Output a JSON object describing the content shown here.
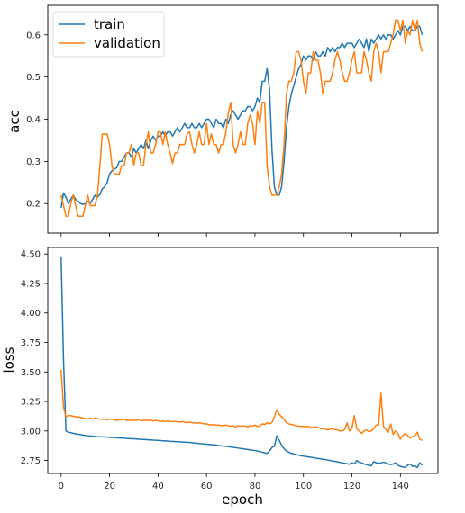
{
  "colors": {
    "train": "#1f77b4",
    "validation": "#ff7f0e"
  },
  "chart_data": [
    {
      "type": "line",
      "ylabel": "acc",
      "xlabel": "",
      "xlim": [
        -5.5,
        155.5
      ],
      "ylim": [
        0.13,
        0.67
      ],
      "xticks": [
        0,
        20,
        40,
        60,
        80,
        100,
        120,
        140
      ],
      "show_xtick_labels": false,
      "yticks": [
        0.2,
        0.3,
        0.4,
        0.5,
        0.6
      ],
      "ytick_labels": [
        "0.2",
        "0.3",
        "0.4",
        "0.5",
        "0.6"
      ],
      "legend": {
        "position": "top-left",
        "entries": [
          "train",
          "validation"
        ]
      },
      "grid": false,
      "x": [
        0,
        1,
        2,
        3,
        4,
        5,
        6,
        7,
        8,
        9,
        10,
        11,
        12,
        13,
        14,
        15,
        16,
        17,
        18,
        19,
        20,
        21,
        22,
        23,
        24,
        25,
        26,
        27,
        28,
        29,
        30,
        31,
        32,
        33,
        34,
        35,
        36,
        37,
        38,
        39,
        40,
        41,
        42,
        43,
        44,
        45,
        46,
        47,
        48,
        49,
        50,
        51,
        52,
        53,
        54,
        55,
        56,
        57,
        58,
        59,
        60,
        61,
        62,
        63,
        64,
        65,
        66,
        67,
        68,
        69,
        70,
        71,
        72,
        73,
        74,
        75,
        76,
        77,
        78,
        79,
        80,
        81,
        82,
        83,
        84,
        85,
        86,
        87,
        88,
        89,
        90,
        91,
        92,
        93,
        94,
        95,
        96,
        97,
        98,
        99,
        100,
        101,
        102,
        103,
        104,
        105,
        106,
        107,
        108,
        109,
        110,
        111,
        112,
        113,
        114,
        115,
        116,
        117,
        118,
        119,
        120,
        121,
        122,
        123,
        124,
        125,
        126,
        127,
        128,
        129,
        130,
        131,
        132,
        133,
        134,
        135,
        136,
        137,
        138,
        139,
        140,
        141,
        142,
        143,
        144,
        145,
        146,
        147,
        148,
        149
      ],
      "series": [
        {
          "name": "train",
          "values": [
            0.19,
            0.225,
            0.215,
            0.2,
            0.21,
            0.22,
            0.21,
            0.205,
            0.2,
            0.198,
            0.2,
            0.205,
            0.2,
            0.21,
            0.22,
            0.215,
            0.222,
            0.235,
            0.24,
            0.25,
            0.27,
            0.278,
            0.282,
            0.285,
            0.3,
            0.3,
            0.31,
            0.32,
            0.32,
            0.31,
            0.33,
            0.32,
            0.33,
            0.34,
            0.33,
            0.35,
            0.33,
            0.35,
            0.36,
            0.35,
            0.36,
            0.36,
            0.37,
            0.36,
            0.37,
            0.37,
            0.36,
            0.37,
            0.38,
            0.37,
            0.38,
            0.39,
            0.38,
            0.38,
            0.39,
            0.38,
            0.38,
            0.39,
            0.38,
            0.39,
            0.4,
            0.4,
            0.39,
            0.38,
            0.4,
            0.39,
            0.39,
            0.38,
            0.4,
            0.39,
            0.41,
            0.42,
            0.41,
            0.4,
            0.41,
            0.42,
            0.42,
            0.43,
            0.43,
            0.42,
            0.43,
            0.45,
            0.44,
            0.49,
            0.49,
            0.52,
            0.47,
            0.33,
            0.24,
            0.22,
            0.22,
            0.24,
            0.3,
            0.38,
            0.43,
            0.46,
            0.48,
            0.5,
            0.52,
            0.53,
            0.55,
            0.54,
            0.55,
            0.55,
            0.54,
            0.56,
            0.55,
            0.55,
            0.56,
            0.55,
            0.57,
            0.56,
            0.57,
            0.56,
            0.57,
            0.57,
            0.58,
            0.57,
            0.58,
            0.58,
            0.58,
            0.57,
            0.58,
            0.59,
            0.58,
            0.57,
            0.59,
            0.56,
            0.59,
            0.58,
            0.59,
            0.6,
            0.59,
            0.6,
            0.59,
            0.6,
            0.6,
            0.59,
            0.6,
            0.61,
            0.6,
            0.62,
            0.62,
            0.61,
            0.62,
            0.61,
            0.61,
            0.62,
            0.62,
            0.6
          ]
        },
        {
          "name": "validation",
          "values": [
            0.22,
            0.195,
            0.17,
            0.17,
            0.2,
            0.22,
            0.195,
            0.17,
            0.17,
            0.17,
            0.195,
            0.22,
            0.195,
            0.195,
            0.195,
            0.22,
            0.29,
            0.365,
            0.365,
            0.365,
            0.34,
            0.29,
            0.27,
            0.27,
            0.27,
            0.29,
            0.29,
            0.32,
            0.32,
            0.34,
            0.29,
            0.32,
            0.32,
            0.29,
            0.29,
            0.34,
            0.37,
            0.32,
            0.32,
            0.34,
            0.37,
            0.37,
            0.34,
            0.37,
            0.34,
            0.32,
            0.295,
            0.32,
            0.32,
            0.34,
            0.34,
            0.34,
            0.365,
            0.37,
            0.34,
            0.32,
            0.34,
            0.37,
            0.34,
            0.34,
            0.39,
            0.34,
            0.365,
            0.34,
            0.34,
            0.32,
            0.34,
            0.34,
            0.37,
            0.415,
            0.44,
            0.34,
            0.32,
            0.34,
            0.37,
            0.34,
            0.34,
            0.39,
            0.41,
            0.39,
            0.34,
            0.42,
            0.39,
            0.44,
            0.44,
            0.29,
            0.24,
            0.22,
            0.22,
            0.22,
            0.24,
            0.27,
            0.34,
            0.46,
            0.49,
            0.49,
            0.51,
            0.56,
            0.56,
            0.54,
            0.49,
            0.46,
            0.51,
            0.51,
            0.56,
            0.54,
            0.54,
            0.51,
            0.46,
            0.49,
            0.49,
            0.49,
            0.51,
            0.54,
            0.56,
            0.54,
            0.51,
            0.49,
            0.49,
            0.51,
            0.54,
            0.56,
            0.51,
            0.51,
            0.51,
            0.56,
            0.54,
            0.51,
            0.49,
            0.56,
            0.58,
            0.56,
            0.51,
            0.56,
            0.56,
            0.56,
            0.58,
            0.6,
            0.635,
            0.635,
            0.61,
            0.635,
            0.58,
            0.61,
            0.6,
            0.635,
            0.61,
            0.635,
            0.58,
            0.56
          ]
        }
      ]
    },
    {
      "type": "line",
      "ylabel": "loss",
      "xlabel": "epoch",
      "xlim": [
        -5.5,
        155.5
      ],
      "ylim": [
        2.64,
        4.555
      ],
      "xticks": [
        0,
        20,
        40,
        60,
        80,
        100,
        120,
        140
      ],
      "xtick_labels": [
        "0",
        "20",
        "40",
        "60",
        "80",
        "100",
        "120",
        "140"
      ],
      "yticks": [
        2.75,
        3.0,
        3.25,
        3.5,
        3.75,
        4.0,
        4.25,
        4.5
      ],
      "ytick_labels": [
        "2.75",
        "3.00",
        "3.25",
        "3.50",
        "3.75",
        "4.00",
        "4.25",
        "4.50"
      ],
      "grid": false,
      "x": [
        0,
        1,
        2,
        3,
        4,
        5,
        6,
        7,
        8,
        9,
        10,
        11,
        12,
        13,
        14,
        15,
        16,
        17,
        18,
        19,
        20,
        21,
        22,
        23,
        24,
        25,
        26,
        27,
        28,
        29,
        30,
        31,
        32,
        33,
        34,
        35,
        36,
        37,
        38,
        39,
        40,
        41,
        42,
        43,
        44,
        45,
        46,
        47,
        48,
        49,
        50,
        51,
        52,
        53,
        54,
        55,
        56,
        57,
        58,
        59,
        60,
        61,
        62,
        63,
        64,
        65,
        66,
        67,
        68,
        69,
        70,
        71,
        72,
        73,
        74,
        75,
        76,
        77,
        78,
        79,
        80,
        81,
        82,
        83,
        84,
        85,
        86,
        87,
        88,
        89,
        90,
        91,
        92,
        93,
        94,
        95,
        96,
        97,
        98,
        99,
        100,
        101,
        102,
        103,
        104,
        105,
        106,
        107,
        108,
        109,
        110,
        111,
        112,
        113,
        114,
        115,
        116,
        117,
        118,
        119,
        120,
        121,
        122,
        123,
        124,
        125,
        126,
        127,
        128,
        129,
        130,
        131,
        132,
        133,
        134,
        135,
        136,
        137,
        138,
        139,
        140,
        141,
        142,
        143,
        144,
        145,
        146,
        147,
        148,
        149
      ],
      "series": [
        {
          "name": "train",
          "values": [
            4.48,
            3.6,
            3.0,
            2.99,
            2.985,
            2.98,
            2.975,
            2.972,
            2.97,
            2.965,
            2.962,
            2.96,
            2.958,
            2.956,
            2.954,
            2.952,
            2.951,
            2.95,
            2.949,
            2.948,
            2.946,
            2.945,
            2.944,
            2.942,
            2.94,
            2.94,
            2.939,
            2.937,
            2.936,
            2.935,
            2.934,
            2.932,
            2.93,
            2.929,
            2.928,
            2.927,
            2.925,
            2.924,
            2.922,
            2.921,
            2.92,
            2.918,
            2.917,
            2.916,
            2.915,
            2.913,
            2.912,
            2.91,
            2.909,
            2.908,
            2.906,
            2.905,
            2.904,
            2.902,
            2.9,
            2.898,
            2.896,
            2.894,
            2.892,
            2.89,
            2.888,
            2.886,
            2.884,
            2.882,
            2.88,
            2.877,
            2.875,
            2.872,
            2.87,
            2.867,
            2.864,
            2.861,
            2.858,
            2.855,
            2.852,
            2.849,
            2.846,
            2.843,
            2.84,
            2.837,
            2.834,
            2.83,
            2.826,
            2.82,
            2.815,
            2.81,
            2.83,
            2.86,
            2.87,
            2.96,
            2.92,
            2.88,
            2.85,
            2.83,
            2.82,
            2.81,
            2.805,
            2.8,
            2.795,
            2.79,
            2.787,
            2.784,
            2.78,
            2.777,
            2.774,
            2.77,
            2.767,
            2.764,
            2.76,
            2.757,
            2.754,
            2.75,
            2.746,
            2.742,
            2.738,
            2.734,
            2.73,
            2.726,
            2.722,
            2.718,
            2.73,
            2.72,
            2.75,
            2.735,
            2.73,
            2.72,
            2.715,
            2.71,
            2.705,
            2.74,
            2.73,
            2.725,
            2.73,
            2.735,
            2.73,
            2.72,
            2.715,
            2.72,
            2.73,
            2.71,
            2.7,
            2.695,
            2.69,
            2.71,
            2.72,
            2.7,
            2.705,
            2.69,
            2.73,
            2.71
          ]
        },
        {
          "name": "validation",
          "values": [
            3.52,
            3.2,
            3.12,
            3.13,
            3.13,
            3.125,
            3.12,
            3.12,
            3.115,
            3.11,
            3.105,
            3.1,
            3.11,
            3.1,
            3.11,
            3.105,
            3.1,
            3.1,
            3.1,
            3.095,
            3.1,
            3.1,
            3.095,
            3.09,
            3.095,
            3.095,
            3.1,
            3.09,
            3.09,
            3.095,
            3.09,
            3.09,
            3.1,
            3.085,
            3.09,
            3.09,
            3.09,
            3.09,
            3.085,
            3.09,
            3.085,
            3.08,
            3.085,
            3.08,
            3.085,
            3.08,
            3.08,
            3.08,
            3.08,
            3.075,
            3.08,
            3.075,
            3.07,
            3.075,
            3.07,
            3.07,
            3.065,
            3.07,
            3.065,
            3.06,
            3.06,
            3.055,
            3.05,
            3.055,
            3.05,
            3.05,
            3.045,
            3.045,
            3.05,
            3.045,
            3.04,
            3.045,
            3.03,
            3.045,
            3.04,
            3.045,
            3.04,
            3.035,
            3.045,
            3.04,
            3.05,
            3.04,
            3.04,
            3.06,
            3.055,
            3.07,
            3.06,
            3.07,
            3.12,
            3.18,
            3.14,
            3.12,
            3.1,
            3.07,
            3.06,
            3.055,
            3.05,
            3.045,
            3.04,
            3.04,
            3.04,
            3.035,
            3.04,
            3.03,
            3.03,
            3.035,
            3.03,
            3.02,
            3.02,
            3.015,
            3.01,
            3.015,
            3.02,
            3.01,
            3.01,
            3.0,
            3.0,
            3.01,
            3.07,
            3.0,
            3.02,
            3.13,
            3.02,
            3.0,
            2.98,
            3.0,
            3.01,
            2.995,
            3.0,
            3.02,
            3.05,
            3.05,
            3.32,
            3.04,
            3.01,
            2.99,
            3.06,
            2.97,
            3.0,
            2.98,
            2.93,
            2.96,
            2.98,
            2.96,
            2.94,
            2.95,
            2.96,
            2.99,
            2.93,
            2.92
          ]
        }
      ]
    }
  ]
}
